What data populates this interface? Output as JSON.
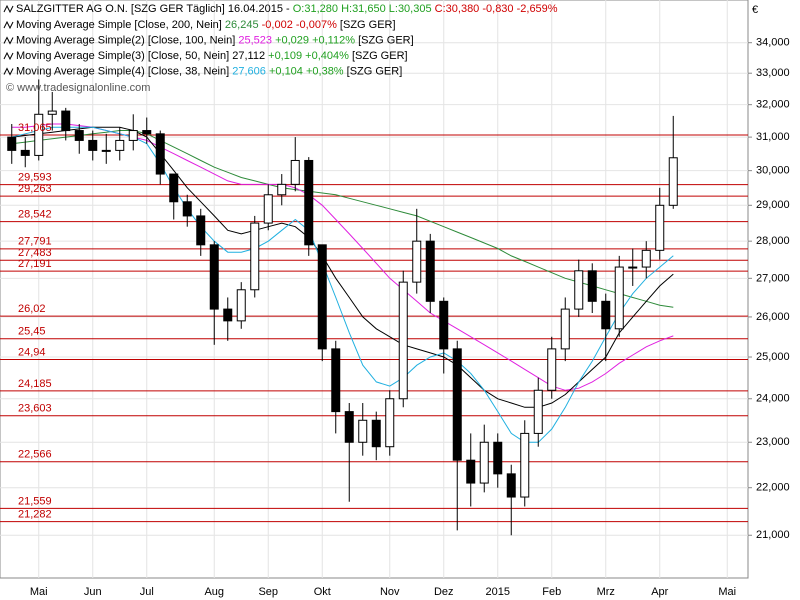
{
  "chart_data": {
    "type": "candlestick",
    "title": "SALZGITTER AG O.N. [SZG GER  Täglich] 16.04.2015 -",
    "quote_ohl": "O:31,280 H:31,650 L:30,305",
    "quote_change": "C:30,380 -0,830 -2,659%",
    "watermark": "© www.tradesignalonline.com",
    "currency": "€",
    "log": true,
    "grid": true,
    "ylim": [
      20.14,
      35.45
    ],
    "yticks": [
      {
        "value": 21,
        "label": "21,000"
      },
      {
        "value": 22,
        "label": "22,000"
      },
      {
        "value": 23,
        "label": "23,000"
      },
      {
        "value": 24,
        "label": "24,000"
      },
      {
        "value": 25,
        "label": "25,000"
      },
      {
        "value": 26,
        "label": "26,000"
      },
      {
        "value": 27,
        "label": "27,000"
      },
      {
        "value": 28,
        "label": "28,000"
      },
      {
        "value": 29,
        "label": "29,000"
      },
      {
        "value": 30,
        "label": "30,000"
      },
      {
        "value": 31,
        "label": "31,000"
      },
      {
        "value": 32,
        "label": "32,000"
      },
      {
        "value": 33,
        "label": "33,000"
      },
      {
        "value": 34,
        "label": "34,000"
      }
    ],
    "categories": [
      null,
      null,
      "Mai",
      null,
      null,
      null,
      "Jun",
      null,
      null,
      null,
      "Jul",
      null,
      null,
      null,
      null,
      "Aug",
      null,
      null,
      null,
      "Sep",
      null,
      null,
      null,
      "Okt",
      null,
      null,
      null,
      null,
      "Nov",
      null,
      null,
      null,
      "Dez",
      null,
      null,
      null,
      "2015",
      null,
      null,
      null,
      "Feb",
      null,
      null,
      null,
      "Mrz",
      null,
      null,
      null,
      "Apr",
      null,
      null,
      null,
      null,
      "Mai"
    ],
    "open": [
      31.0,
      30.6,
      30.45,
      31.7,
      31.8,
      31.2,
      30.9,
      30.6,
      30.6,
      30.9,
      31.2,
      31.1,
      29.9,
      29.1,
      28.7,
      27.9,
      26.2,
      25.9,
      26.7,
      28.5,
      29.3,
      29.6,
      30.3,
      27.9,
      25.2,
      23.7,
      23.0,
      23.5,
      22.9,
      24.0,
      26.9,
      28.0,
      26.4,
      25.2,
      22.6,
      22.1,
      23.0,
      22.3,
      21.8,
      23.2,
      24.2,
      25.2,
      26.2,
      27.2,
      26.4,
      25.7,
      27.3,
      27.3,
      27.75,
      29.0,
      null,
      null,
      null,
      null
    ],
    "high": [
      31.4,
      31.0,
      32.8,
      32.4,
      31.9,
      31.4,
      31.2,
      31.1,
      31.3,
      31.7,
      31.6,
      31.2,
      29.9,
      29.3,
      28.9,
      28.0,
      26.5,
      26.9,
      28.7,
      29.6,
      29.9,
      31.0,
      30.4,
      27.9,
      25.4,
      23.9,
      23.9,
      23.7,
      24.2,
      27.2,
      28.9,
      28.2,
      26.5,
      25.4,
      23.2,
      23.4,
      23.2,
      22.5,
      23.5,
      24.5,
      25.5,
      26.5,
      27.5,
      27.4,
      26.6,
      27.6,
      27.8,
      28.0,
      29.5,
      31.65,
      null,
      null,
      null,
      null
    ],
    "low": [
      30.2,
      30.1,
      30.3,
      31.2,
      30.9,
      30.5,
      30.3,
      30.2,
      30.3,
      30.6,
      30.8,
      29.6,
      28.6,
      28.4,
      27.6,
      25.3,
      25.4,
      25.7,
      26.5,
      28.3,
      29.0,
      29.4,
      27.6,
      24.9,
      23.2,
      21.7,
      22.7,
      22.6,
      22.7,
      23.8,
      26.6,
      26.1,
      24.6,
      21.1,
      21.6,
      21.9,
      22.0,
      21.0,
      21.6,
      22.9,
      24.0,
      24.9,
      26.0,
      26.1,
      24.9,
      25.5,
      26.8,
      27.0,
      27.5,
      28.9,
      null,
      null,
      null,
      null
    ],
    "close": [
      30.6,
      30.45,
      31.7,
      31.8,
      31.2,
      30.9,
      30.6,
      30.6,
      30.9,
      31.2,
      31.1,
      29.9,
      29.1,
      28.7,
      27.9,
      26.2,
      25.9,
      26.7,
      28.5,
      29.3,
      29.6,
      30.3,
      27.9,
      25.2,
      23.7,
      23.0,
      23.5,
      22.9,
      24.0,
      26.9,
      28.0,
      26.4,
      25.2,
      22.6,
      22.1,
      23.0,
      22.3,
      21.8,
      23.2,
      24.2,
      25.2,
      26.2,
      27.2,
      26.4,
      25.7,
      27.3,
      27.3,
      27.75,
      29.0,
      30.38,
      null,
      null,
      null,
      null
    ],
    "series": [
      {
        "name": "Moving Average Simple [Close, 200, Nein]",
        "legend_value": "26,245",
        "legend_change": "-0,002 -0,007%",
        "legend_suffix": "[SZG GER]",
        "color": "#2e8b3a",
        "value_color": "#2e8b3a",
        "change_color": "#d00000",
        "values": [
          30.8,
          30.85,
          30.9,
          30.95,
          31.0,
          31.05,
          31.1,
          31.15,
          31.2,
          31.2,
          31.1,
          30.9,
          30.7,
          30.5,
          30.3,
          30.1,
          29.95,
          29.8,
          29.7,
          29.6,
          29.5,
          29.45,
          29.4,
          29.35,
          29.3,
          29.2,
          29.1,
          29.0,
          28.9,
          28.8,
          28.7,
          28.55,
          28.4,
          28.25,
          28.1,
          27.95,
          27.8,
          27.6,
          27.45,
          27.3,
          27.15,
          27.0,
          26.9,
          26.8,
          26.7,
          26.6,
          26.5,
          26.4,
          26.3,
          26.245,
          null,
          null,
          null,
          null
        ]
      },
      {
        "name": "Moving Average Simple(2) [Close, 100, Nein]",
        "legend_value": "25,523",
        "legend_change": "+0,029 +0,112%",
        "legend_suffix": "[SZG GER]",
        "color": "#e020e0",
        "value_color": "#e020e0",
        "change_color": "#20a020",
        "values": [
          31.3,
          31.3,
          31.35,
          31.4,
          31.4,
          31.35,
          31.3,
          31.2,
          31.1,
          31.0,
          30.9,
          30.7,
          30.5,
          30.3,
          30.1,
          29.9,
          29.7,
          29.6,
          29.6,
          29.6,
          29.6,
          29.5,
          29.3,
          29.0,
          28.6,
          28.2,
          27.8,
          27.4,
          27.0,
          26.7,
          26.4,
          26.1,
          25.9,
          25.7,
          25.5,
          25.3,
          25.1,
          24.9,
          24.7,
          24.5,
          24.3,
          24.2,
          24.25,
          24.4,
          24.6,
          24.85,
          25.05,
          25.25,
          25.4,
          25.523,
          null,
          null,
          null,
          null
        ]
      },
      {
        "name": "Moving Average Simple(3) [Close, 50, Nein]",
        "legend_value": "27,112",
        "legend_change": "+0,109 +0,404%",
        "legend_suffix": "[SZG GER]",
        "color": "#000000",
        "value_color": "#000000",
        "change_color": "#20a020",
        "values": [
          31.0,
          31.05,
          31.1,
          31.15,
          31.2,
          31.25,
          31.3,
          31.3,
          31.3,
          31.2,
          31.0,
          30.5,
          30.0,
          29.5,
          29.1,
          28.7,
          28.3,
          28.2,
          28.3,
          28.4,
          28.5,
          28.4,
          28.1,
          27.6,
          27.0,
          26.5,
          26.0,
          25.7,
          25.5,
          25.3,
          25.2,
          25.1,
          25.0,
          24.8,
          24.5,
          24.2,
          24.0,
          23.9,
          23.8,
          23.8,
          23.9,
          24.1,
          24.4,
          24.7,
          25.0,
          25.6,
          26.0,
          26.4,
          26.8,
          27.112,
          null,
          null,
          null,
          null
        ]
      },
      {
        "name": "Moving Average Simple(4) [Close, 38, Nein]",
        "legend_value": "27,606",
        "legend_change": "+0,104 +0,38%",
        "legend_suffix": "[SZG GER]",
        "color": "#20b0e0",
        "value_color": "#20b0e0",
        "change_color": "#20a020",
        "values": [
          31.0,
          31.1,
          31.2,
          31.3,
          31.3,
          31.3,
          31.3,
          31.2,
          31.1,
          31.0,
          30.8,
          30.2,
          29.5,
          28.9,
          28.4,
          28.0,
          27.7,
          27.7,
          27.8,
          28.0,
          28.3,
          28.6,
          28.3,
          27.4,
          26.5,
          25.6,
          24.8,
          24.4,
          24.3,
          24.5,
          24.8,
          25.0,
          25.1,
          24.9,
          24.6,
          24.2,
          23.7,
          23.2,
          23.0,
          23.0,
          23.3,
          23.8,
          24.4,
          24.9,
          25.5,
          26.1,
          26.6,
          27.0,
          27.3,
          27.606,
          null,
          null,
          null,
          null
        ]
      }
    ],
    "levels": [
      {
        "value": 31.065,
        "label": "31,065"
      },
      {
        "value": 29.593,
        "label": "29,593"
      },
      {
        "value": 29.263,
        "label": "29,263"
      },
      {
        "value": 28.542,
        "label": "28,542"
      },
      {
        "value": 27.791,
        "label": "27,791"
      },
      {
        "value": 27.483,
        "label": "27,483"
      },
      {
        "value": 27.191,
        "label": "27,191"
      },
      {
        "value": 26.02,
        "label": "26,02"
      },
      {
        "value": 25.45,
        "label": "25,45"
      },
      {
        "value": 24.94,
        "label": "24,94"
      },
      {
        "value": 24.185,
        "label": "24,185"
      },
      {
        "value": 23.603,
        "label": "23,603"
      },
      {
        "value": 22.566,
        "label": "22,566"
      },
      {
        "value": 21.559,
        "label": "21,559"
      },
      {
        "value": 21.282,
        "label": "21,282"
      }
    ],
    "level_color": "#c00000"
  }
}
